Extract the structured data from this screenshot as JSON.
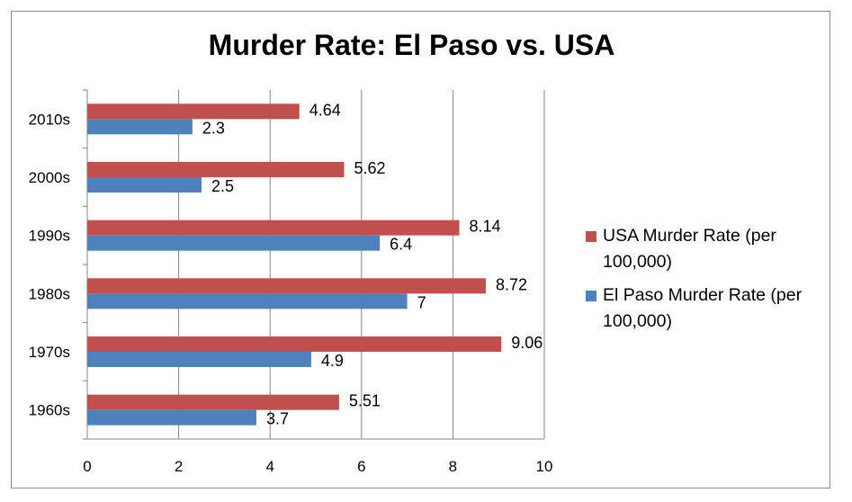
{
  "chart_data": {
    "type": "bar",
    "orientation": "horizontal",
    "title": "Murder Rate: El Paso vs. USA",
    "categories": [
      "1960s",
      "1970s",
      "1980s",
      "1990s",
      "2000s",
      "2010s"
    ],
    "series": [
      {
        "name": "El Paso Murder Rate (per 100,000)",
        "color": "#4f81bd",
        "values": [
          3.7,
          4.9,
          7,
          6.4,
          2.5,
          2.3
        ],
        "labels": [
          "3.7",
          "4.9",
          "7",
          "6.4",
          "2.5",
          "2.3"
        ]
      },
      {
        "name": "USA Murder Rate (per 100,000)",
        "color": "#c0504d",
        "values": [
          5.51,
          9.06,
          8.72,
          8.14,
          5.62,
          4.64
        ],
        "labels": [
          "5.51",
          "9.06",
          "8.72",
          "8.14",
          "5.62",
          "4.64"
        ]
      }
    ],
    "xlim": [
      0,
      10
    ],
    "xticks": [
      "0",
      "2",
      "4",
      "6",
      "8",
      "10"
    ],
    "xlabel": "",
    "ylabel": "",
    "grid": true,
    "legend_position": "right",
    "legend_order": [
      "USA Murder Rate (per 100,000)",
      "El Paso Murder Rate (per 100,000)"
    ]
  }
}
